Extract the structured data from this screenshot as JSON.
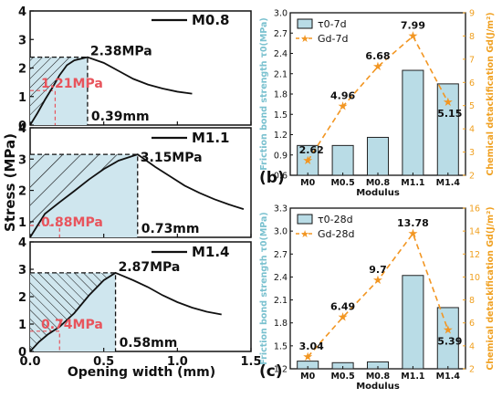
{
  "colors": {
    "bar_fill": "#b9dce6",
    "bar_stroke": "#222222",
    "left_axis_label": "#7ac1cf",
    "right_axis_label": "#f0a020",
    "g_line": "#f29622",
    "red_annotation": "#e8545c",
    "shade_fill": "#cfe6ee"
  },
  "left_panel": {
    "ylabel": "Stress (MPa)",
    "xlabel": "Opening width (mm)",
    "x_ticks": [
      "0.0",
      "0.5",
      "1.0",
      "1.5"
    ],
    "subplots": [
      {
        "legend": "M0.8",
        "peak_label": "2.38MPa",
        "friction_label": "1.21MPa",
        "width_label": "0.39mm",
        "y_ticks": [
          "0",
          "1",
          "2",
          "3",
          "4"
        ],
        "ylim": [
          0,
          4
        ],
        "peak": [
          0.39,
          2.38
        ],
        "friction_stress": 1.21,
        "friction_x": 0.17,
        "curve": [
          [
            0,
            0
          ],
          [
            0.05,
            0.42
          ],
          [
            0.1,
            0.88
          ],
          [
            0.15,
            1.3
          ],
          [
            0.2,
            1.75
          ],
          [
            0.25,
            2.1
          ],
          [
            0.3,
            2.27
          ],
          [
            0.39,
            2.38
          ],
          [
            0.5,
            2.18
          ],
          [
            0.6,
            1.9
          ],
          [
            0.7,
            1.62
          ],
          [
            0.8,
            1.42
          ],
          [
            0.9,
            1.28
          ],
          [
            1.0,
            1.17
          ],
          [
            1.1,
            1.1
          ]
        ]
      },
      {
        "legend": "M1.1",
        "peak_label": "3.15MPa",
        "friction_label": "0.88MPa",
        "width_label": "0.73mm",
        "y_ticks": [
          "1",
          "2",
          "3",
          "4"
        ],
        "ylim": [
          0.5,
          4
        ],
        "peak": [
          0.73,
          3.15
        ],
        "friction_stress": 0.88,
        "friction_x": 0.2,
        "curve": [
          [
            0,
            0.5
          ],
          [
            0.1,
            1.25
          ],
          [
            0.2,
            1.62
          ],
          [
            0.3,
            1.98
          ],
          [
            0.4,
            2.35
          ],
          [
            0.5,
            2.68
          ],
          [
            0.6,
            2.95
          ],
          [
            0.73,
            3.15
          ],
          [
            0.85,
            2.75
          ],
          [
            0.95,
            2.45
          ],
          [
            1.05,
            2.15
          ],
          [
            1.15,
            1.92
          ],
          [
            1.25,
            1.72
          ],
          [
            1.35,
            1.55
          ],
          [
            1.45,
            1.4
          ]
        ]
      },
      {
        "legend": "M1.4",
        "peak_label": "2.87MPa",
        "friction_label": "0.74MPa",
        "width_label": "0.58mm",
        "y_ticks": [
          "0",
          "1",
          "2",
          "3",
          "4"
        ],
        "ylim": [
          0,
          4
        ],
        "peak": [
          0.58,
          2.87
        ],
        "friction_stress": 0.74,
        "friction_x": 0.2,
        "curve": [
          [
            0,
            0
          ],
          [
            0.06,
            0.35
          ],
          [
            0.12,
            0.62
          ],
          [
            0.2,
            0.9
          ],
          [
            0.3,
            1.4
          ],
          [
            0.4,
            2.05
          ],
          [
            0.5,
            2.6
          ],
          [
            0.58,
            2.87
          ],
          [
            0.7,
            2.6
          ],
          [
            0.8,
            2.35
          ],
          [
            0.9,
            2.05
          ],
          [
            1.0,
            1.8
          ],
          [
            1.1,
            1.6
          ],
          [
            1.2,
            1.45
          ],
          [
            1.3,
            1.35
          ]
        ]
      }
    ]
  },
  "chart_data": [
    {
      "type": "bar+line",
      "panel_label": "(b)",
      "categories": [
        "M0",
        "M0.5",
        "M0.8",
        "M1.1",
        "M1.4"
      ],
      "xlabel": "Modulus",
      "ylabel_left": "Friction bond strength τ0(MPa)",
      "ylabel_right": "Chemical detackification Gd(J/m²)",
      "ylim_left": [
        0.6,
        3.0
      ],
      "yticks_left": [
        "0.6",
        "0.9",
        "1.2",
        "1.5",
        "1.8",
        "2.1",
        "2.4",
        "2.7",
        "3.0"
      ],
      "ylim_right": [
        2,
        9
      ],
      "yticks_right": [
        "2",
        "3",
        "4",
        "5",
        "6",
        "7",
        "8",
        "9"
      ],
      "series": [
        {
          "name": "τ0-7d",
          "kind": "bar",
          "values": [
            1.04,
            1.04,
            1.16,
            2.15,
            1.95
          ]
        },
        {
          "name": "Gd-7d",
          "kind": "line",
          "values": [
            2.62,
            4.96,
            6.68,
            7.99,
            5.15
          ],
          "labels": [
            "2.62",
            "4.96",
            "6.68",
            "7.99",
            "5.15"
          ]
        }
      ]
    },
    {
      "type": "bar+line",
      "panel_label": "(c)",
      "categories": [
        "M0",
        "M0.5",
        "M0.8",
        "M1.1",
        "M1.4"
      ],
      "xlabel": "Modulus",
      "ylabel_left": "Friction bond strength τ0(MPa)",
      "ylabel_right": "Chemical detackification Gd(J/m²)",
      "ylim_left": [
        1.2,
        3.3
      ],
      "yticks_left": [
        "1.2",
        "1.5",
        "1.8",
        "2.1",
        "2.4",
        "2.7",
        "3.0",
        "3.3"
      ],
      "ylim_right": [
        2,
        16
      ],
      "yticks_right": [
        "2",
        "4",
        "6",
        "8",
        "10",
        "12",
        "14",
        "16"
      ],
      "series": [
        {
          "name": "τ0-28d",
          "kind": "bar",
          "values": [
            1.3,
            1.28,
            1.29,
            2.42,
            2.0
          ]
        },
        {
          "name": "Gd-28d",
          "kind": "line",
          "values": [
            3.04,
            6.49,
            9.7,
            13.78,
            5.39
          ],
          "labels": [
            "3.04",
            "6.49",
            "9.7",
            "13.78",
            "5.39"
          ]
        }
      ]
    }
  ]
}
